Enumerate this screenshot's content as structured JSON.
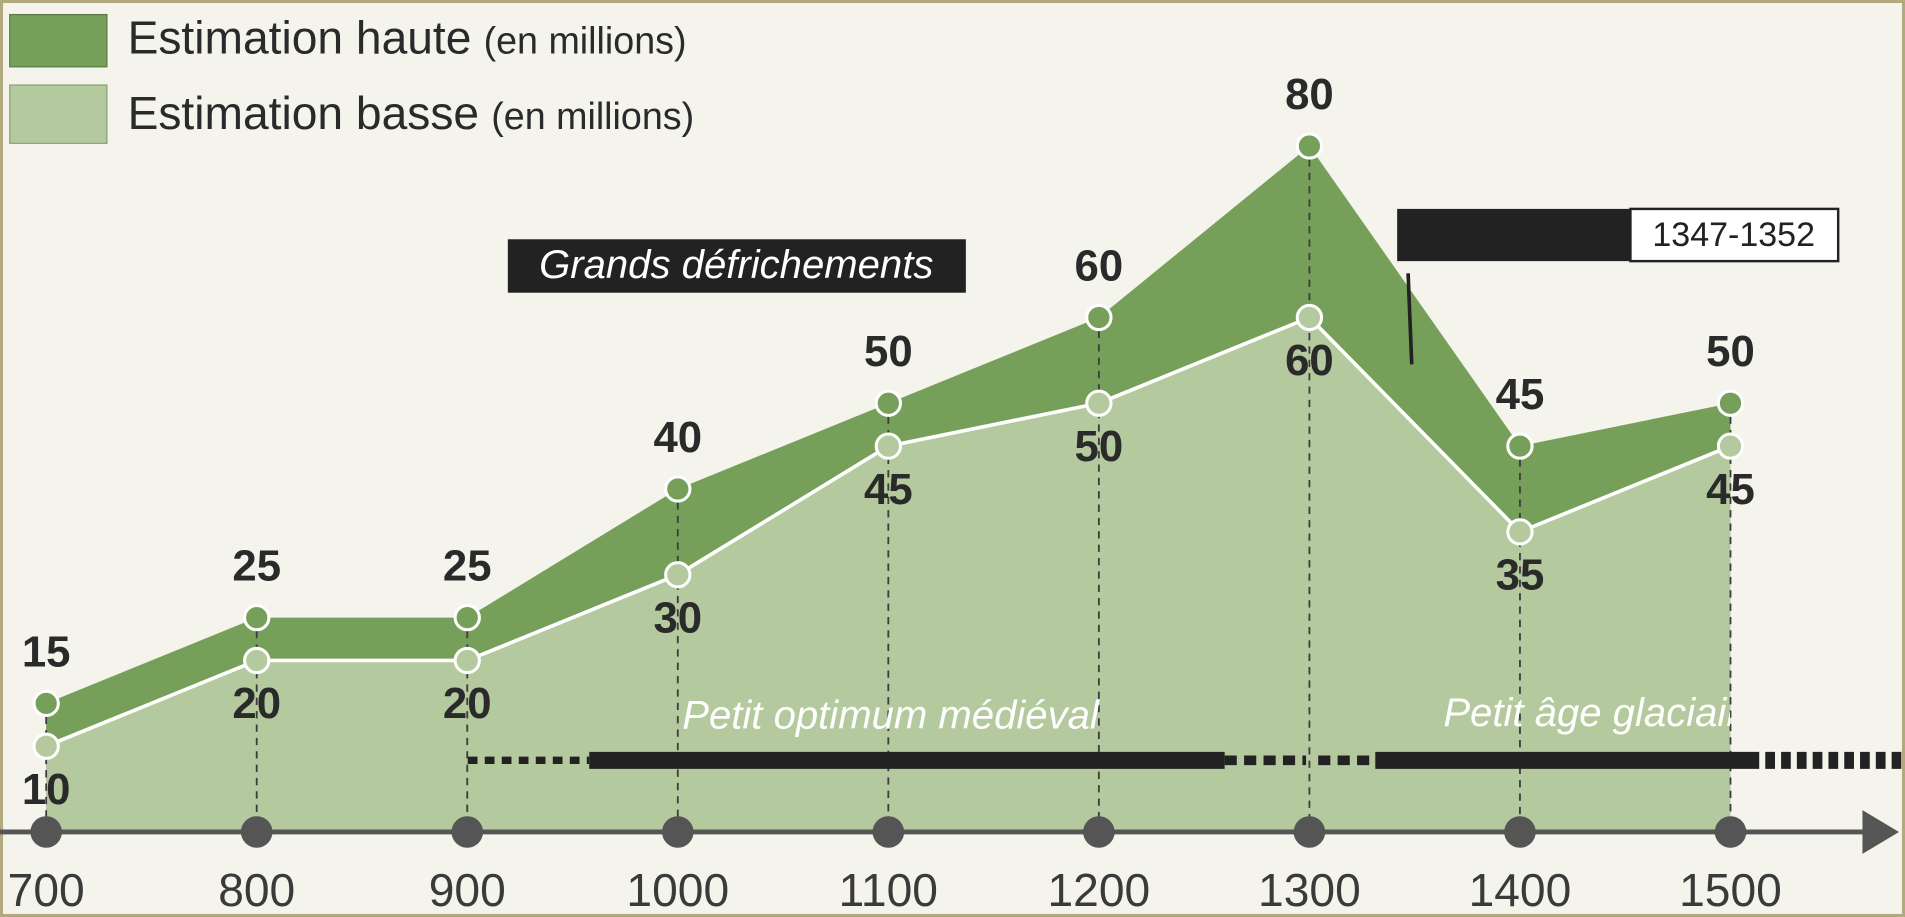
{
  "chart_data": {
    "type": "area",
    "x": [
      700,
      800,
      900,
      1000,
      1100,
      1200,
      1300,
      1400,
      1500
    ],
    "xlim": [
      700,
      1580
    ],
    "xticks": [
      700,
      800,
      900,
      1000,
      1100,
      1200,
      1300,
      1400,
      1500
    ],
    "ylim": [
      0,
      90
    ],
    "unit": "(en millions)",
    "series": [
      {
        "name": "Estimation haute",
        "color": "#76a05a",
        "values": [
          15,
          25,
          25,
          40,
          50,
          60,
          80,
          45,
          50
        ]
      },
      {
        "name": "Estimation basse",
        "color": "#b5c99e",
        "values": [
          10,
          20,
          20,
          30,
          45,
          50,
          60,
          35,
          45
        ]
      }
    ],
    "annotations": [
      "Grands défrichements",
      "1347-1352",
      "Petit optimum médiéval",
      "Petit âge glaciaire"
    ]
  }
}
